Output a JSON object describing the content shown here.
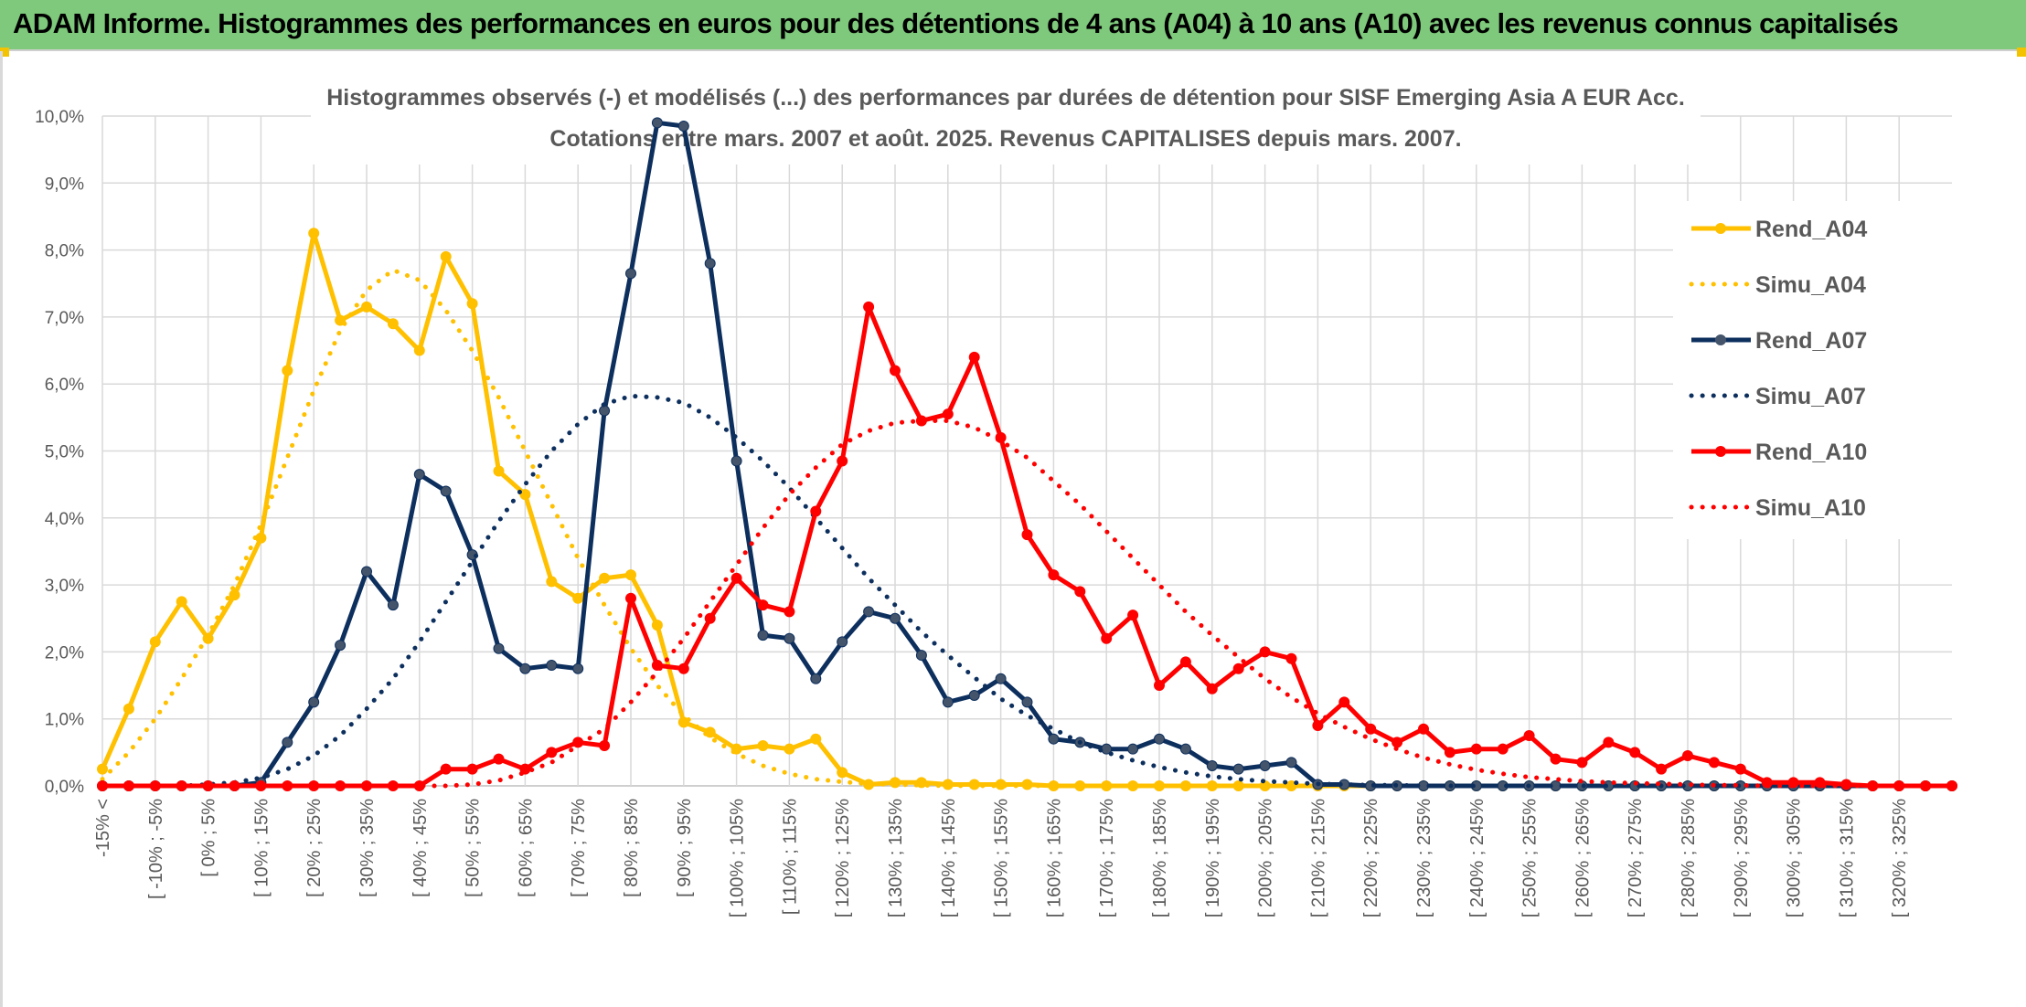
{
  "header": {
    "title": "ADAM Informe. Histogrammes des performances en euros pour des détentions de 4 ans (A04) à 10 ans (A10) avec les revenus connus capitalisés"
  },
  "chart_data": {
    "type": "line",
    "title_line1": "Histogrammes observés (-) et modélisés (...) des performances par durées de détention pour SISF Emerging Asia A EUR Acc.",
    "title_line2": "Cotations entre mars. 2007 et août. 2025. Revenus CAPITALISES depuis mars. 2007.",
    "ylim": [
      0,
      10
    ],
    "y_ticks": [
      "0,0%",
      "1,0%",
      "2,0%",
      "3,0%",
      "4,0%",
      "5,0%",
      "6,0%",
      "7,0%",
      "8,0%",
      "9,0%",
      "10,0%"
    ],
    "grid": true,
    "legend_position": "right",
    "x_labels": [
      "-15% <",
      "[ -10% ; -5%",
      "[ 0% ; 5%",
      "[ 10% ; 15%",
      "[ 20% ; 25%",
      "[ 30% ; 35%",
      "[ 40% ; 45%",
      "[ 50% ; 55%",
      "[ 60% ; 65%",
      "[ 70% ; 75%",
      "[ 80% ; 85%",
      "[ 90% ; 95%",
      "[ 100% ; 105%",
      "[ 110% ; 115%",
      "[ 120% ; 125%",
      "[ 130% ; 135%",
      "[ 140% ; 145%",
      "[ 150% ; 155%",
      "[ 160% ; 165%",
      "[ 170% ; 175%",
      "[ 180% ; 185%",
      "[ 190% ; 195%",
      "[ 200% ; 205%",
      "[ 210% ; 215%",
      "[ 220% ; 225%",
      "[ 230% ; 235%",
      "[ 240% ; 245%",
      "[ 250% ; 255%",
      "[ 260% ; 265%",
      "[ 270% ; 275%",
      "[ 280% ; 285%",
      "[ 290% ; 295%",
      "[ 300% ; 305%",
      "[ 310% ; 315%",
      "[ 320% ; 325%"
    ],
    "categories_count": 71,
    "series": [
      {
        "name": "Rend_A04",
        "color": "#ffc000",
        "style": "solid",
        "markers": true,
        "values": [
          0.25,
          1.15,
          2.15,
          2.75,
          2.2,
          2.85,
          3.7,
          6.2,
          8.25,
          6.95,
          7.15,
          6.9,
          6.5,
          7.9,
          7.2,
          4.7,
          4.35,
          3.05,
          2.8,
          3.1,
          3.15,
          2.4,
          0.95,
          0.8,
          0.55,
          0.6,
          0.55,
          0.7,
          0.2,
          0.02,
          0.05,
          0.05,
          0.02,
          0.02,
          0.02,
          0.02,
          0.0,
          0.0,
          0.0,
          0.0,
          0.0,
          0.0,
          0.0,
          0.0,
          0.0,
          0.0,
          0.0,
          0.0,
          0.0,
          0.0,
          0.0,
          0.0,
          0.0,
          0.0,
          0.0,
          0.0,
          0.0,
          0.0,
          0.0,
          0.0,
          0.0,
          0.0,
          0.0,
          0.0,
          0.0,
          0.0,
          0.0,
          0.0,
          0.0,
          0.0,
          0.0
        ]
      },
      {
        "name": "Simu_A04",
        "color": "#ffc000",
        "style": "dotted",
        "markers": false,
        "values": [
          0.1,
          0.5,
          1.0,
          1.6,
          2.25,
          3.0,
          3.9,
          4.9,
          5.9,
          6.8,
          7.4,
          7.7,
          7.55,
          7.1,
          6.5,
          5.8,
          5.0,
          4.2,
          3.4,
          2.7,
          2.05,
          1.5,
          1.05,
          0.72,
          0.48,
          0.3,
          0.18,
          0.1,
          0.06,
          0.03,
          0.02,
          0.01,
          0.0,
          0.0,
          0.0,
          0.0,
          0.0,
          0.0,
          0.0,
          0.0,
          0.0,
          0.0,
          0.0,
          0.0,
          0.0,
          0.0,
          0.0,
          0.0,
          0.0,
          0.0,
          0.0,
          0.0,
          0.0,
          0.0,
          0.0,
          0.0,
          0.0,
          0.0,
          0.0,
          0.0,
          0.0,
          0.0,
          0.0,
          0.0,
          0.0,
          0.0,
          0.0,
          0.0,
          0.0,
          0.0,
          0.0
        ]
      },
      {
        "name": "Rend_A07",
        "color": "#0d2f5e",
        "style": "solid",
        "markers": true,
        "values": [
          0.0,
          0.0,
          0.0,
          0.0,
          0.0,
          0.0,
          0.05,
          0.65,
          1.25,
          2.1,
          3.2,
          2.7,
          4.65,
          4.4,
          3.45,
          2.05,
          1.75,
          1.8,
          1.75,
          5.6,
          7.65,
          9.9,
          9.85,
          7.8,
          4.85,
          2.25,
          2.2,
          1.6,
          2.15,
          2.6,
          2.5,
          1.95,
          1.25,
          1.35,
          1.6,
          1.25,
          0.7,
          0.65,
          0.55,
          0.55,
          0.7,
          0.55,
          0.3,
          0.25,
          0.3,
          0.35,
          0.02,
          0.02,
          0.0,
          0.0,
          0.0,
          0.0,
          0.0,
          0.0,
          0.0,
          0.0,
          0.0,
          0.0,
          0.0,
          0.0,
          0.0,
          0.0,
          0.0,
          0.0,
          0.0,
          0.0,
          0.0,
          0.0,
          0.0,
          0.0,
          0.0
        ]
      },
      {
        "name": "Simu_A07",
        "color": "#0d2f5e",
        "style": "dotted",
        "markers": false,
        "values": [
          0.0,
          0.0,
          0.0,
          0.0,
          0.02,
          0.05,
          0.12,
          0.25,
          0.45,
          0.75,
          1.15,
          1.6,
          2.15,
          2.75,
          3.35,
          3.95,
          4.5,
          5.0,
          5.4,
          5.7,
          5.82,
          5.8,
          5.72,
          5.5,
          5.2,
          4.85,
          4.45,
          4.0,
          3.55,
          3.1,
          2.7,
          2.3,
          1.95,
          1.62,
          1.3,
          1.05,
          0.85,
          0.65,
          0.5,
          0.38,
          0.28,
          0.2,
          0.14,
          0.1,
          0.07,
          0.05,
          0.03,
          0.02,
          0.01,
          0.01,
          0.0,
          0.0,
          0.0,
          0.0,
          0.0,
          0.0,
          0.0,
          0.0,
          0.0,
          0.0,
          0.0,
          0.0,
          0.0,
          0.0,
          0.0,
          0.0,
          0.0,
          0.0,
          0.0,
          0.0,
          0.0
        ]
      },
      {
        "name": "Rend_A10",
        "color": "#ff0000",
        "style": "solid",
        "markers": true,
        "values": [
          0.0,
          0.0,
          0.0,
          0.0,
          0.0,
          0.0,
          0.0,
          0.0,
          0.0,
          0.0,
          0.0,
          0.0,
          0.0,
          0.25,
          0.25,
          0.4,
          0.25,
          0.5,
          0.65,
          0.6,
          2.8,
          1.8,
          1.75,
          2.5,
          3.1,
          2.7,
          2.6,
          4.1,
          4.85,
          7.15,
          6.2,
          5.45,
          5.55,
          6.4,
          5.2,
          3.75,
          3.15,
          2.9,
          2.2,
          2.55,
          1.5,
          1.85,
          1.45,
          1.75,
          2.0,
          1.9,
          0.9,
          1.25,
          0.85,
          0.65,
          0.85,
          0.5,
          0.55,
          0.55,
          0.75,
          0.4,
          0.35,
          0.65,
          0.5,
          0.25,
          0.45,
          0.35,
          0.25,
          0.05,
          0.05,
          0.05,
          0.02,
          0.0,
          0.0,
          0.0,
          0.0
        ]
      },
      {
        "name": "Simu_A10",
        "color": "#ff0000",
        "style": "dotted",
        "markers": false,
        "values": [
          0.0,
          0.0,
          0.0,
          0.0,
          0.0,
          0.0,
          0.0,
          0.0,
          0.0,
          0.0,
          0.0,
          0.0,
          0.0,
          0.0,
          0.02,
          0.08,
          0.2,
          0.35,
          0.6,
          0.85,
          1.25,
          1.7,
          2.2,
          2.75,
          3.3,
          3.85,
          4.35,
          4.75,
          5.1,
          5.3,
          5.42,
          5.45,
          5.45,
          5.35,
          5.15,
          4.9,
          4.55,
          4.2,
          3.8,
          3.4,
          3.0,
          2.6,
          2.25,
          1.92,
          1.6,
          1.32,
          1.08,
          0.88,
          0.7,
          0.55,
          0.42,
          0.32,
          0.24,
          0.18,
          0.13,
          0.1,
          0.07,
          0.05,
          0.04,
          0.03,
          0.02,
          0.01,
          0.01,
          0.0,
          0.0,
          0.0,
          0.0,
          0.0,
          0.0,
          0.0,
          0.0
        ]
      }
    ]
  }
}
